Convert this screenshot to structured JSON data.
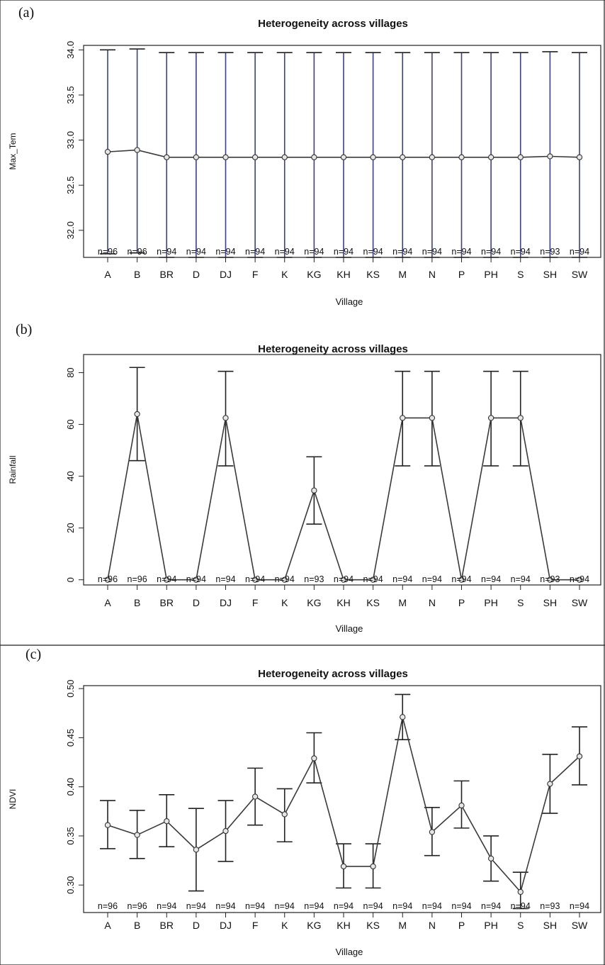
{
  "chart_data": [
    {
      "type": "line",
      "panel_label": "(a)",
      "title": "Heterogeneity across villages",
      "xlabel": "Village",
      "ylabel": "Max_Tem",
      "ylim": [
        31.7,
        34.05
      ],
      "yticks": [
        "32.0",
        "32.5",
        "33.0",
        "33.5",
        "34.0"
      ],
      "categories": [
        "A",
        "B",
        "BR",
        "D",
        "DJ",
        "F",
        "K",
        "KG",
        "KH",
        "KS",
        "M",
        "N",
        "P",
        "PH",
        "S",
        "SH",
        "SW"
      ],
      "values": [
        32.87,
        32.89,
        32.81,
        32.81,
        32.81,
        32.81,
        32.81,
        32.81,
        32.81,
        32.81,
        32.81,
        32.81,
        32.81,
        32.81,
        32.81,
        32.82,
        32.81
      ],
      "err_low": [
        31.74,
        31.75,
        31.7,
        31.7,
        31.7,
        31.7,
        31.7,
        31.7,
        31.7,
        31.7,
        31.7,
        31.7,
        31.7,
        31.7,
        31.7,
        31.7,
        31.7
      ],
      "err_high": [
        34.0,
        34.01,
        33.97,
        33.97,
        33.97,
        33.97,
        33.97,
        33.97,
        33.97,
        33.97,
        33.97,
        33.97,
        33.97,
        33.97,
        33.97,
        33.98,
        33.97
      ],
      "n_labels": [
        "n=96",
        "n=96",
        "n=94",
        "n=94",
        "n=94",
        "n=94",
        "n=94",
        "n=94",
        "n=94",
        "n=94",
        "n=94",
        "n=94",
        "n=94",
        "n=94",
        "n=94",
        "n=93",
        "n=94"
      ],
      "grid": false
    },
    {
      "type": "line",
      "panel_label": "(b)",
      "title": "Heterogeneity across villages",
      "xlabel": "Village",
      "ylabel": "Rainfall",
      "ylim": [
        -2,
        87
      ],
      "yticks": [
        "0",
        "20",
        "40",
        "60",
        "80"
      ],
      "categories": [
        "A",
        "B",
        "BR",
        "D",
        "DJ",
        "F",
        "K",
        "KG",
        "KH",
        "KS",
        "M",
        "N",
        "P",
        "PH",
        "S",
        "SH",
        "SW"
      ],
      "values": [
        0,
        64,
        0,
        0,
        62.5,
        0,
        0,
        34.5,
        0,
        0,
        62.5,
        62.5,
        0,
        62.5,
        62.5,
        0,
        0
      ],
      "err_low": [
        null,
        46,
        null,
        null,
        44,
        null,
        null,
        21.5,
        null,
        null,
        44,
        44,
        null,
        44,
        44,
        null,
        null
      ],
      "err_high": [
        null,
        82,
        null,
        null,
        80.5,
        null,
        null,
        47.5,
        null,
        null,
        80.5,
        80.5,
        null,
        80.5,
        80.5,
        null,
        null
      ],
      "n_labels": [
        "n=96",
        "n=96",
        "n=94",
        "n=94",
        "n=94",
        "n=94",
        "n=94",
        "n=93",
        "n=94",
        "n=94",
        "n=94",
        "n=94",
        "n=94",
        "n=94",
        "n=94",
        "n=93",
        "n=94"
      ],
      "grid": false
    },
    {
      "type": "line",
      "panel_label": "(c)",
      "title": "Heterogeneity across villages",
      "xlabel": "Village",
      "ylabel": "NDVI",
      "ylim": [
        0.272,
        0.503
      ],
      "yticks": [
        "0.30",
        "0.35",
        "0.40",
        "0.45",
        "0.50"
      ],
      "categories": [
        "A",
        "B",
        "BR",
        "D",
        "DJ",
        "F",
        "K",
        "KG",
        "KH",
        "KS",
        "M",
        "N",
        "P",
        "PH",
        "S",
        "SH",
        "SW"
      ],
      "values": [
        0.361,
        0.351,
        0.365,
        0.336,
        0.355,
        0.39,
        0.372,
        0.429,
        0.319,
        0.319,
        0.471,
        0.354,
        0.381,
        0.327,
        0.293,
        0.403,
        0.431
      ],
      "err_low": [
        0.337,
        0.327,
        0.339,
        0.294,
        0.324,
        0.361,
        0.344,
        0.404,
        0.297,
        0.297,
        0.448,
        0.33,
        0.358,
        0.304,
        0.276,
        0.373,
        0.402
      ],
      "err_high": [
        0.386,
        0.376,
        0.392,
        0.378,
        0.386,
        0.419,
        0.398,
        0.455,
        0.342,
        0.342,
        0.494,
        0.379,
        0.406,
        0.35,
        0.313,
        0.433,
        0.461
      ],
      "n_labels": [
        "n=96",
        "n=96",
        "n=94",
        "n=94",
        "n=94",
        "n=94",
        "n=94",
        "n=94",
        "n=94",
        "n=94",
        "n=94",
        "n=94",
        "n=94",
        "n=94",
        "n=94",
        "n=93",
        "n=94"
      ],
      "grid": false
    }
  ],
  "colors": {
    "line": "#3a3a3a",
    "errorbar_a": "#3b3f8c",
    "text": "#111111"
  }
}
